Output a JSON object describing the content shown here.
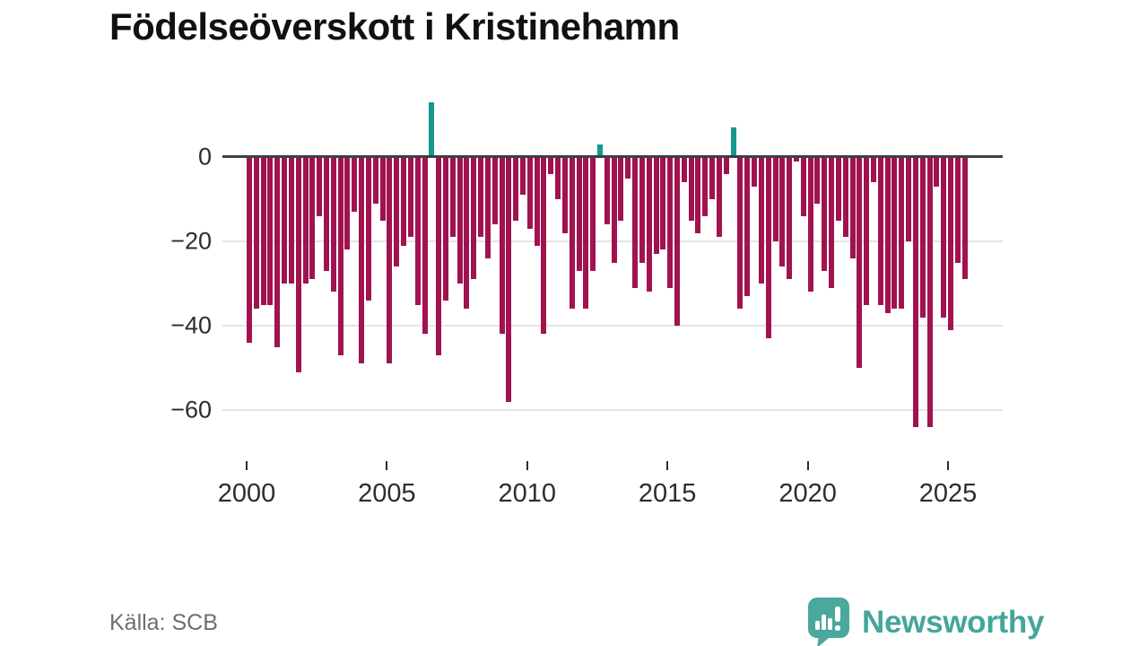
{
  "title": "Födelseöverskott i Kristinehamn",
  "source": "Källa: SCB",
  "logo": {
    "brand": "Newsworthy",
    "icon": "speech-bubble-bar-chart-icon"
  },
  "colors": {
    "negative": "#a1134f",
    "positive": "#14998c",
    "axis": "#3b4045",
    "grid": "#e4e4e8",
    "tick_label": "#2d2d30",
    "source_text": "#6b6e75",
    "logo_teal": "#43a69b"
  },
  "chart_data": {
    "type": "bar",
    "title": "Födelseöverskott i Kristinehamn",
    "xlabel": "",
    "ylabel": "",
    "frequency": "quarterly",
    "x_start_year": 2000,
    "x_start_quarter": 1,
    "x_end_year": 2025,
    "x_end_quarter": 3,
    "values": [
      -44,
      -36,
      -35,
      -35,
      -45,
      -30,
      -30,
      -51,
      -30,
      -29,
      -14,
      -27,
      -32,
      -47,
      -22,
      -13,
      -49,
      -34,
      -11,
      -15,
      -49,
      -26,
      -21,
      -19,
      -35,
      -42,
      13,
      -47,
      -34,
      -19,
      -30,
      -36,
      -29,
      -19,
      -24,
      -16,
      -42,
      -58,
      -15,
      -9,
      -17,
      -21,
      -42,
      -4,
      -10,
      -18,
      -36,
      -27,
      -36,
      -27,
      3,
      -16,
      -25,
      -15,
      -5,
      -31,
      -25,
      -32,
      -23,
      -22,
      -31,
      -40,
      -6,
      -15,
      -18,
      -14,
      -10,
      -19,
      -4,
      7,
      -36,
      -33,
      -7,
      -30,
      -43,
      -20,
      -26,
      -29,
      -1,
      -14,
      -32,
      -11,
      -27,
      -31,
      -15,
      -19,
      -24,
      -50,
      -35,
      -6,
      -35,
      -37,
      -36,
      -36,
      -20,
      -64,
      -38,
      -64,
      -7,
      -38,
      -41,
      -25,
      -29
    ],
    "x_tick_years": [
      2000,
      2005,
      2010,
      2015,
      2020,
      2025
    ],
    "y_ticks": [
      0,
      -20,
      -40,
      -60
    ],
    "ylim": [
      -68,
      15
    ],
    "grid": "horizontal",
    "legend": "none",
    "positive_color": "#14998c",
    "negative_color": "#a1134f",
    "source": "Källa: SCB"
  }
}
